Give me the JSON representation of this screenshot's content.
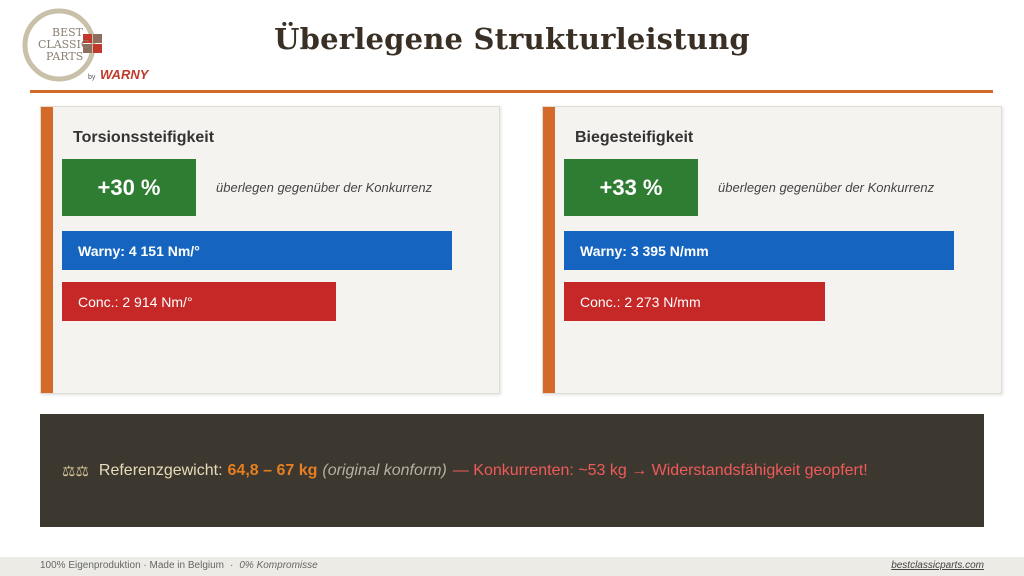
{
  "logo": {
    "line1": "BEST",
    "line2": "CLASSIC",
    "line3": "PARTS",
    "by": "by",
    "brand": "WARNY"
  },
  "title": "Überlegene Strukturleistung",
  "colors": {
    "accent": "#d46a2a",
    "green": "#2f7d32",
    "blue": "#1565c0",
    "red": "#c62828",
    "dark": "#3c382f"
  },
  "panels": [
    {
      "title": "Torsionssteifigkeit",
      "badge": "+30 %",
      "note": "überlegen gegenüber der Konkurrenz",
      "warny_label": "Warny: 4 151 Nm/°",
      "conc_label": "Conc.: 2 914 Nm/°",
      "warny_value": 4151,
      "conc_value": 2914
    },
    {
      "title": "Biegesteifigkeit",
      "badge": "+33 %",
      "note": "überlegen gegenüber der Konkurrenz",
      "warny_label": "Warny: 3 395 N/mm",
      "conc_label": "Conc.: 2 273 N/mm",
      "warny_value": 3395,
      "conc_value": 2273
    }
  ],
  "info": {
    "icon": "scale-icon",
    "label": "Referenzgewicht:",
    "value": "64,8 – 67 kg",
    "original": "(original konform)",
    "warning": "— Konkurrenten: ~53 kg → Widerstandsfähigkeit geopfert!"
  },
  "footer": {
    "left": "100% Eigenproduktion · Made in Belgium",
    "sep": "·",
    "left2": "0% Kompromisse",
    "right": "bestclassicparts.com"
  }
}
